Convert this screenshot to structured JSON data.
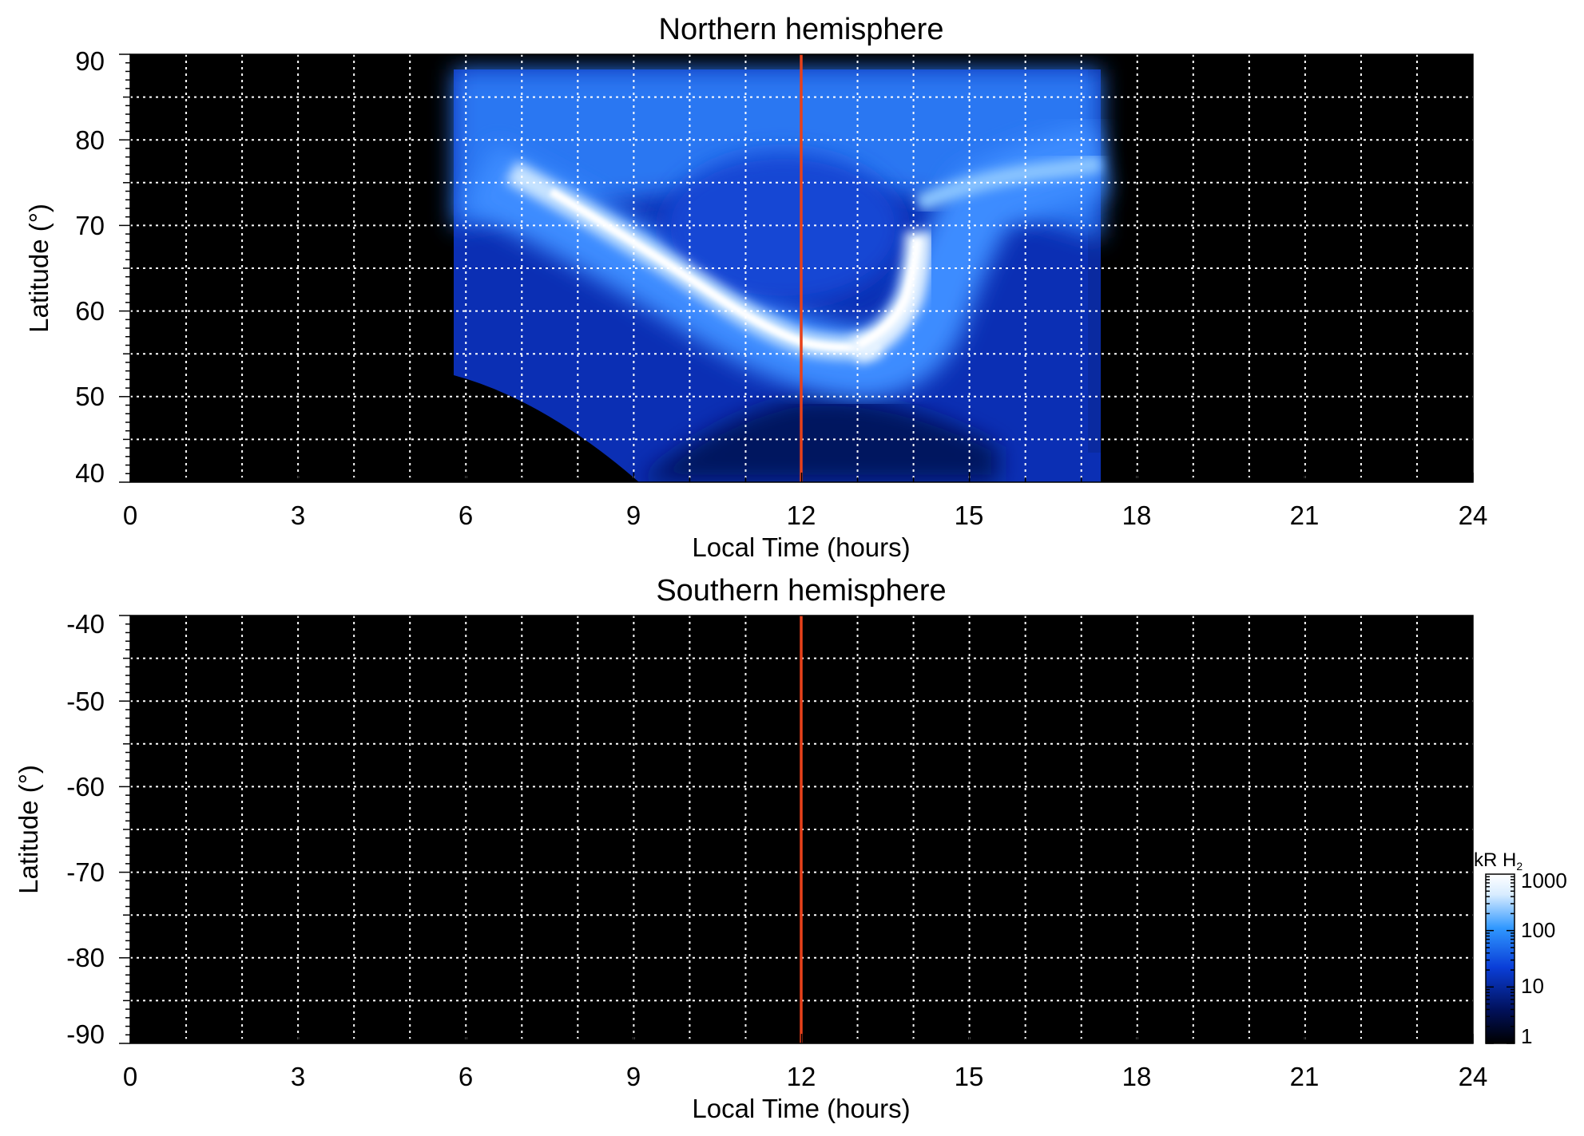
{
  "chart_data": [
    {
      "type": "heatmap",
      "title": "Northern hemisphere",
      "xlabel": "Local Time (hours)",
      "ylabel": "Latitude (°)",
      "xlim": [
        0,
        24
      ],
      "ylim": [
        40,
        90
      ],
      "xticks": [
        "0",
        "3",
        "6",
        "9",
        "12",
        "15",
        "18",
        "21",
        "24"
      ],
      "yticks": [
        "90",
        "80",
        "70",
        "60",
        "50",
        "40"
      ],
      "grid": true,
      "reference_line": {
        "x": 12,
        "color": "#e8411a"
      },
      "data_extent": {
        "lt_range": [
          5.8,
          17.6
        ],
        "lat_max": 88.5
      },
      "features": {
        "main_oval_dawn_arc": [
          [
            5.8,
            76
          ],
          [
            8.0,
            71
          ],
          [
            9.5,
            66
          ],
          [
            11.0,
            60
          ],
          [
            12.0,
            56
          ],
          [
            12.7,
            54.5
          ],
          [
            13.6,
            55.5
          ]
        ],
        "cusp_spot": [
          [
            12.7,
            55
          ],
          [
            13.3,
            58
          ],
          [
            13.8,
            62
          ],
          [
            14.2,
            67
          ],
          [
            14.5,
            70
          ]
        ],
        "dusk_oval": [
          [
            13.5,
            72
          ],
          [
            15.0,
            74.5
          ],
          [
            17.0,
            76.5
          ]
        ],
        "polar_cap_centre": [
          11.5,
          73
        ]
      }
    },
    {
      "type": "heatmap",
      "title": "Southern hemisphere",
      "xlabel": "Local Time (hours)",
      "ylabel": "Latitude (°)",
      "xlim": [
        0,
        24
      ],
      "ylim": [
        -90,
        -40
      ],
      "xticks": [
        "0",
        "3",
        "6",
        "9",
        "12",
        "15",
        "18",
        "21",
        "24"
      ],
      "yticks": [
        "-40",
        "-50",
        "-60",
        "-70",
        "-80",
        "-90"
      ],
      "grid": true,
      "reference_line": {
        "x": 12,
        "color": "#e8411a"
      },
      "data_extent": null
    }
  ],
  "colorbar": {
    "label_text": "kR H",
    "label_subscript": "2",
    "scale": "log",
    "ticks": [
      "1000",
      "100",
      "10",
      "1"
    ],
    "range": [
      1,
      1000
    ],
    "colors": [
      "#000000",
      "#01115c",
      "#0a3ed8",
      "#2f97ff",
      "#d8ecff",
      "#ffffff"
    ]
  },
  "colors": {
    "plot_background": "#000000",
    "grid": "#ffffff",
    "reference_line": "#e8411a"
  }
}
